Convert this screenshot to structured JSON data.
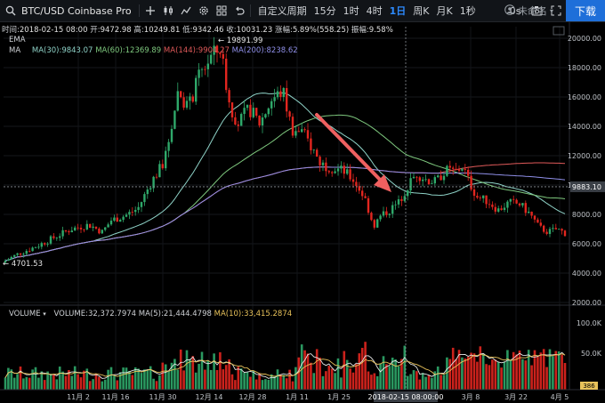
{
  "toolbar": {
    "symbol": "BTC/USD Coinbase Pro",
    "custom_period": "自定义周期",
    "intervals": [
      "15分",
      "1时",
      "4时",
      "1日",
      "周K",
      "月K",
      "1秒"
    ],
    "replay": "0s",
    "user_label": "未命名",
    "download_label": "下载"
  },
  "infobar": {
    "time_label": "时间:",
    "time": "2018-02-15 08:00",
    "open_label": "开:",
    "open": "9472.98",
    "high_label": "高:",
    "high": "10249.81",
    "low_label": "低:",
    "low": "9342.46",
    "close_label": "收:",
    "close": "10031.23",
    "change_label": "涨幅:",
    "change": "5.89%(558.25)",
    "amplitude_label": "振幅:",
    "amplitude": "9.58%"
  },
  "indicators": {
    "ema_label": "EMA",
    "ma_label": "MA",
    "ma30": "MA(30):9843.07",
    "ma60": "MA(60):12369.89",
    "ma144": "MA(144):9904.27",
    "ma200": "MA(200):8238.62",
    "ma30_color": "#8fd3c8",
    "ma60_color": "#7ec87e",
    "ma144_color": "#e05a5a",
    "ma200_color": "#8f8fe8"
  },
  "volume": {
    "title": "VOLUME",
    "volume": "VOLUME:32,372.7974",
    "ma5": "MA(5):21,444.4798",
    "ma10": "MA(10):33,415.2874",
    "ma10_color": "#e8c25a",
    "axis": [
      "100.0K",
      "50.0K"
    ],
    "current": "386"
  },
  "price_axis": [
    "20000.00",
    "18000.00",
    "16000.00",
    "14000.00",
    "12000.00",
    "10000.00",
    "8000.00",
    "6000.00",
    "4000.00",
    "2000.00"
  ],
  "current_price": "9883.10",
  "annotations": {
    "high_marker": "19891.99",
    "low_marker": "4701.53",
    "crosshair_date": "2018-02-15 08:00:00"
  },
  "date_axis": [
    "11月 2",
    "11月 16",
    "11月 30",
    "12月 14",
    "12月 28",
    "1月 11",
    "1月 25",
    "3月 8",
    "3月 22",
    "4月 5"
  ],
  "colors": {
    "up": "#2fa86a",
    "down": "#e2261f",
    "arrow": "#ef6060"
  }
}
